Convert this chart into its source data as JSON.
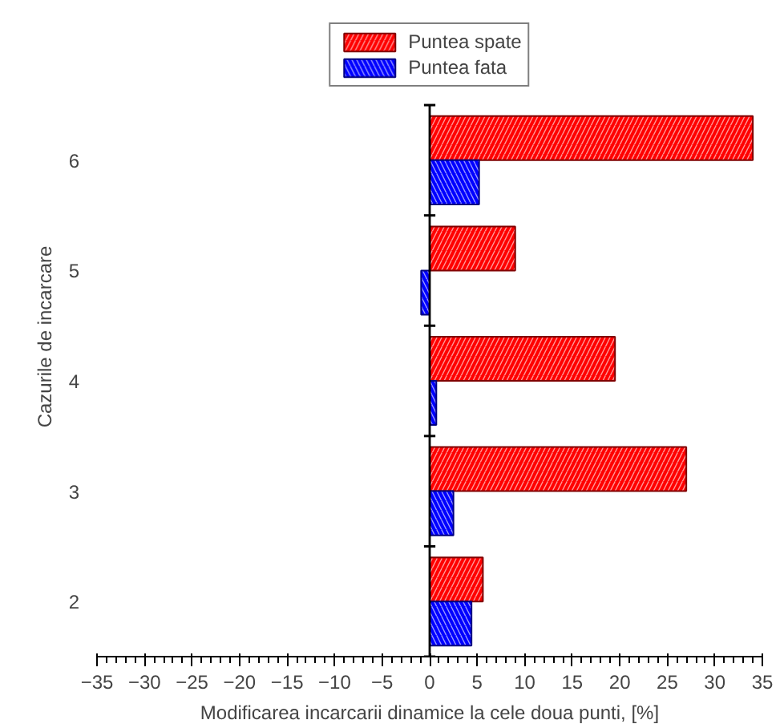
{
  "chart_data": {
    "type": "bar",
    "orientation": "horizontal",
    "xlabel": "Modificarea incarcarii dinamice la cele doua punti, [%]",
    "ylabel": "Cazurile de incarcare",
    "categories": [
      "6",
      "5",
      "4",
      "3",
      "2"
    ],
    "series": [
      {
        "name": "Puntea spate",
        "color": "#ff0000",
        "values": [
          34,
          9,
          19.5,
          27,
          5.6
        ]
      },
      {
        "name": "Puntea fata",
        "color": "#0000ff",
        "values": [
          5.2,
          -0.9,
          0.7,
          2.5,
          4.4
        ]
      }
    ],
    "xlim": [
      -35,
      35
    ],
    "xticks": [
      -35,
      -30,
      -25,
      -20,
      -15,
      -10,
      -5,
      0,
      5,
      10,
      15,
      20,
      25,
      30,
      35
    ],
    "legend": "top"
  }
}
